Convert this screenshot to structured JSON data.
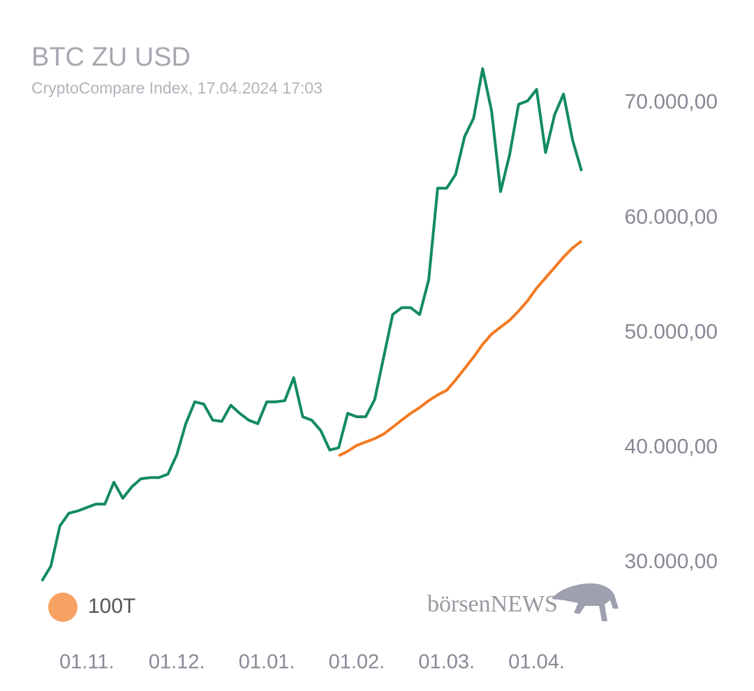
{
  "chart_data": {
    "type": "line",
    "title": "BTC ZU USD",
    "subtitle": "CryptoCompare Index, 17.04.2024 17:03",
    "watermark": "börsenNEWS",
    "x": [
      "17.10.",
      "20.10.",
      "23.10.",
      "26.10.",
      "29.10.",
      "01.11.",
      "04.11.",
      "07.11.",
      "10.11.",
      "13.11.",
      "16.11.",
      "19.11.",
      "22.11.",
      "25.11.",
      "28.11.",
      "01.12.",
      "04.12.",
      "07.12.",
      "10.12.",
      "13.12.",
      "16.12.",
      "19.12.",
      "22.12.",
      "25.12.",
      "28.12.",
      "01.01.",
      "04.01.",
      "07.01.",
      "10.01.",
      "13.01.",
      "16.01.",
      "19.01.",
      "22.01.",
      "25.01.",
      "28.01.",
      "01.02.",
      "04.02.",
      "07.02.",
      "10.02.",
      "13.02.",
      "16.02.",
      "19.02.",
      "22.02.",
      "25.02.",
      "28.02.",
      "01.03.",
      "04.03.",
      "07.03.",
      "10.03.",
      "13.03.",
      "16.03.",
      "19.03.",
      "22.03.",
      "25.03.",
      "28.03.",
      "01.04.",
      "04.04.",
      "07.04.",
      "10.04.",
      "13.04.",
      "16.04."
    ],
    "series": [
      {
        "color": "#138a63",
        "values": [
          28400,
          29700,
          33200,
          34300,
          34500,
          34800,
          35100,
          35100,
          37000,
          35600,
          36600,
          37300,
          37400,
          37400,
          37700,
          39400,
          42100,
          44000,
          43800,
          42400,
          42300,
          43700,
          43000,
          42400,
          42100,
          44000,
          44000,
          44100,
          46100,
          42700,
          42400,
          41500,
          39800,
          40000,
          43000,
          42700,
          42700,
          44200,
          47900,
          51600,
          52200,
          52200,
          51600,
          54600,
          62600,
          62600,
          63800,
          67100,
          68700,
          73000,
          69300,
          62300,
          65500,
          69900,
          70200,
          71200,
          65700,
          69000,
          70800,
          66800,
          64100
        ]
      },
      {
        "name": "100T",
        "color": "#f47920",
        "values": [
          null,
          null,
          null,
          null,
          null,
          null,
          null,
          null,
          null,
          null,
          null,
          null,
          null,
          null,
          null,
          null,
          null,
          null,
          null,
          null,
          null,
          null,
          null,
          null,
          null,
          null,
          null,
          null,
          null,
          null,
          null,
          null,
          null,
          39300,
          39700,
          40200,
          40500,
          40800,
          41200,
          41800,
          42400,
          43000,
          43500,
          44100,
          44600,
          45000,
          45900,
          46900,
          47900,
          49000,
          49900,
          50500,
          51100,
          51900,
          52800,
          53900,
          54800,
          55700,
          56600,
          57400,
          58000
        ]
      }
    ],
    "xticks": [
      "01.11.",
      "01.12.",
      "01.01.",
      "01.02.",
      "01.03.",
      "01.04."
    ],
    "ylim": [
      28000,
      74000
    ],
    "yticks": [
      {
        "value": 30000,
        "label": "30.000,00"
      },
      {
        "value": 40000,
        "label": "40.000,00"
      },
      {
        "value": 50000,
        "label": "50.000,00"
      },
      {
        "value": 60000,
        "label": "60.000,00"
      },
      {
        "value": 70000,
        "label": "70.000,00"
      }
    ],
    "grid": false
  }
}
